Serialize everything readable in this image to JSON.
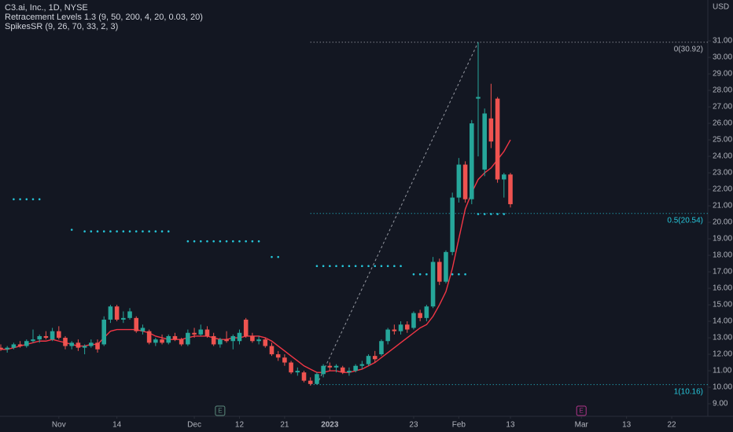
{
  "chart_data": {
    "type": "candlestick",
    "title": "C3.ai, Inc., 1D, NYSE",
    "indicators": [
      "Retracement Levels 1.3 (9, 50, 200, 4, 20, 0.03, 20)",
      "SpikesSR (9, 26, 70, 33, 2, 3)"
    ],
    "currency": "USD",
    "up_color": "#26a69a",
    "down_color": "#ef5350",
    "open": [
      12.4,
      12.3,
      12.4,
      12.6,
      12.5,
      12.8,
      12.9,
      13.1,
      12.9,
      13.4,
      13.0,
      12.5,
      12.7,
      12.4,
      12.5,
      12.7,
      12.6,
      14.1,
      14.9,
      14.1,
      14.2,
      14.2,
      13.4,
      13.4,
      12.7,
      12.9,
      12.7,
      13.1,
      12.9,
      12.6,
      13.3,
      13.2,
      13.5,
      13.1,
      12.6,
      12.9,
      12.8,
      12.8,
      14.1,
      13.1,
      12.8,
      12.9,
      12.5,
      12.0,
      11.8,
      11.5,
      10.9,
      10.9,
      10.4,
      10.2,
      10.8,
      11.3,
      11.2,
      11.2,
      10.9,
      11.0,
      11.3,
      11.4,
      11.9,
      12.0,
      12.8,
      13.5,
      13.4,
      13.8,
      13.6,
      14.5,
      14.2,
      14.9,
      17.6,
      16.4,
      18.2,
      21.5,
      23.5,
      21.4,
      27.5,
      23.2,
      26.3,
      27.5,
      22.6,
      22.9
    ],
    "high": [
      12.6,
      12.5,
      12.7,
      12.8,
      12.9,
      13.5,
      13.2,
      13.4,
      13.6,
      13.7,
      13.1,
      12.8,
      12.9,
      12.6,
      12.9,
      12.9,
      14.3,
      15.0,
      15.0,
      14.6,
      14.8,
      14.3,
      13.8,
      13.5,
      13.0,
      13.2,
      13.2,
      13.3,
      13.0,
      13.5,
      13.6,
      13.8,
      13.7,
      13.3,
      13.0,
      13.4,
      13.2,
      13.5,
      14.2,
      13.3,
      13.1,
      13.0,
      12.7,
      12.2,
      12.0,
      11.6,
      11.2,
      11.0,
      10.6,
      10.9,
      11.4,
      11.5,
      11.4,
      11.3,
      11.2,
      11.4,
      11.6,
      12.0,
      12.2,
      12.9,
      13.6,
      13.8,
      14.0,
      14.0,
      14.6,
      14.7,
      15.0,
      17.9,
      17.8,
      18.3,
      21.8,
      23.9,
      23.7,
      26.2,
      30.92,
      26.9,
      28.4,
      27.6,
      23.0,
      23.0
    ],
    "low": [
      12.2,
      12.1,
      12.3,
      12.4,
      12.4,
      12.7,
      12.7,
      12.9,
      12.8,
      12.9,
      12.3,
      12.3,
      12.2,
      12.0,
      12.4,
      12.1,
      12.5,
      13.9,
      14.0,
      13.9,
      14.1,
      13.3,
      13.2,
      12.6,
      12.5,
      12.6,
      12.6,
      12.8,
      12.5,
      12.5,
      13.0,
      13.1,
      13.0,
      12.5,
      12.4,
      12.7,
      12.3,
      12.6,
      13.0,
      12.7,
      12.6,
      12.4,
      11.9,
      11.6,
      11.3,
      10.8,
      10.7,
      10.3,
      10.1,
      10.16,
      10.6,
      11.0,
      10.9,
      10.8,
      10.7,
      10.9,
      11.1,
      11.3,
      11.5,
      11.9,
      12.6,
      13.2,
      13.2,
      13.3,
      13.5,
      14.0,
      14.0,
      14.8,
      16.2,
      16.3,
      18.0,
      21.2,
      21.2,
      21.1,
      24.0,
      22.8,
      24.5,
      22.4,
      21.5,
      20.9
    ],
    "close": [
      12.3,
      12.4,
      12.6,
      12.5,
      12.8,
      12.9,
      13.1,
      13.0,
      13.4,
      13.0,
      12.5,
      12.7,
      12.4,
      12.5,
      12.7,
      12.3,
      14.1,
      14.9,
      14.1,
      14.2,
      14.6,
      13.4,
      13.6,
      12.7,
      12.9,
      12.7,
      13.1,
      12.9,
      12.6,
      13.3,
      13.2,
      13.5,
      13.1,
      12.6,
      12.9,
      12.8,
      13.1,
      13.3,
      13.1,
      12.8,
      12.9,
      12.5,
      12.0,
      11.8,
      11.5,
      10.9,
      11.0,
      10.4,
      10.2,
      10.8,
      11.3,
      11.2,
      11.3,
      10.9,
      11.0,
      11.3,
      11.4,
      11.9,
      11.7,
      12.8,
      13.5,
      13.4,
      13.8,
      13.5,
      14.5,
      14.2,
      14.9,
      17.6,
      16.4,
      18.2,
      21.5,
      23.5,
      21.4,
      26.0,
      27.6,
      26.6,
      24.9,
      22.6,
      22.9,
      21.1
    ],
    "line": {
      "color": "#f23645",
      "values": [
        12.3,
        12.3,
        12.4,
        12.5,
        12.6,
        12.7,
        12.8,
        12.8,
        12.9,
        12.8,
        12.7,
        12.6,
        12.5,
        12.5,
        12.6,
        12.6,
        13.0,
        13.4,
        13.5,
        13.5,
        13.5,
        13.5,
        13.4,
        13.3,
        13.1,
        13.0,
        12.9,
        12.9,
        12.9,
        13.0,
        13.1,
        13.1,
        13.1,
        13.0,
        12.9,
        12.9,
        13.0,
        13.0,
        13.1,
        13.1,
        13.1,
        13.0,
        12.8,
        12.5,
        12.2,
        11.9,
        11.6,
        11.3,
        11.1,
        10.9,
        10.9,
        11.0,
        11.0,
        10.9,
        10.9,
        11.0,
        11.1,
        11.3,
        11.5,
        11.8,
        12.1,
        12.4,
        12.7,
        13.0,
        13.3,
        13.6,
        13.8,
        14.3,
        15.0,
        15.8,
        17.2,
        19.0,
        20.8,
        21.8,
        22.6,
        23.0,
        23.3,
        23.8,
        24.3,
        25.0
      ]
    },
    "levels": {
      "color": "#26c6da",
      "items": [
        {
          "value": 21.4,
          "start": 2,
          "end": 6
        },
        {
          "value": 19.55,
          "start": 11,
          "end": 11
        },
        {
          "value": 19.45,
          "start": 13,
          "end": 26
        },
        {
          "value": 18.85,
          "start": 29,
          "end": 40
        },
        {
          "value": 17.9,
          "start": 42,
          "end": 43
        },
        {
          "value": 17.35,
          "start": 49,
          "end": 62
        },
        {
          "value": 16.85,
          "start": 64,
          "end": 66
        },
        {
          "value": 16.85,
          "start": 70,
          "end": 72
        },
        {
          "value": 20.5,
          "start": 74,
          "end": 78
        }
      ]
    },
    "retracement": {
      "start": 48,
      "anchors": [
        49,
        74
      ],
      "levels": [
        {
          "value": 30.92,
          "label": "0(30.92)",
          "color": "#b2b5be"
        },
        {
          "value": 20.54,
          "label": "0.5(20.54)",
          "color": "#26c6da"
        },
        {
          "value": 10.16,
          "label": "1(10.16)",
          "color": "#26c6da"
        }
      ]
    },
    "events": [
      {
        "x": 34,
        "label": "E",
        "color": "#5b8a7d"
      },
      {
        "x": 90,
        "label": "E",
        "color": "#b0358a"
      }
    ],
    "xlim": [
      -0.12,
      109.6
    ],
    "ylim": [
      8.24,
      33.48
    ],
    "xticks": [
      {
        "value": 9,
        "label": "Nov"
      },
      {
        "value": 18,
        "label": "14"
      },
      {
        "value": 30,
        "label": "Dec"
      },
      {
        "value": 37,
        "label": "12"
      },
      {
        "value": 44,
        "label": "21"
      },
      {
        "value": 51,
        "label": "2023"
      },
      {
        "value": 64,
        "label": "23"
      },
      {
        "value": 71,
        "label": "Feb"
      },
      {
        "value": 79,
        "label": "13"
      },
      {
        "value": 90,
        "label": "Mar"
      },
      {
        "value": 97,
        "label": "13"
      },
      {
        "value": 104,
        "label": "22"
      }
    ],
    "yticks": [
      {
        "value": 9,
        "label": "9.00"
      },
      {
        "value": 10,
        "label": "10.00"
      },
      {
        "value": 11,
        "label": "11.00"
      },
      {
        "value": 12,
        "label": "12.00"
      },
      {
        "value": 13,
        "label": "13.00"
      },
      {
        "value": 14,
        "label": "14.00"
      },
      {
        "value": 15,
        "label": "15.00"
      },
      {
        "value": 16,
        "label": "16.00"
      },
      {
        "value": 17,
        "label": "17.00"
      },
      {
        "value": 18,
        "label": "18.00"
      },
      {
        "value": 19,
        "label": "19.00"
      },
      {
        "value": 20,
        "label": "20.00"
      },
      {
        "value": 21,
        "label": "21.00"
      },
      {
        "value": 22,
        "label": "22.00"
      },
      {
        "value": 23,
        "label": "23.00"
      },
      {
        "value": 24,
        "label": "24.00"
      },
      {
        "value": 25,
        "label": "25.00"
      },
      {
        "value": 26,
        "label": "26.00"
      },
      {
        "value": 27,
        "label": "27.00"
      },
      {
        "value": 28,
        "label": "28.00"
      },
      {
        "value": 29,
        "label": "29.00"
      },
      {
        "value": 30,
        "label": "30.00"
      },
      {
        "value": 31,
        "label": "31.00"
      }
    ]
  }
}
